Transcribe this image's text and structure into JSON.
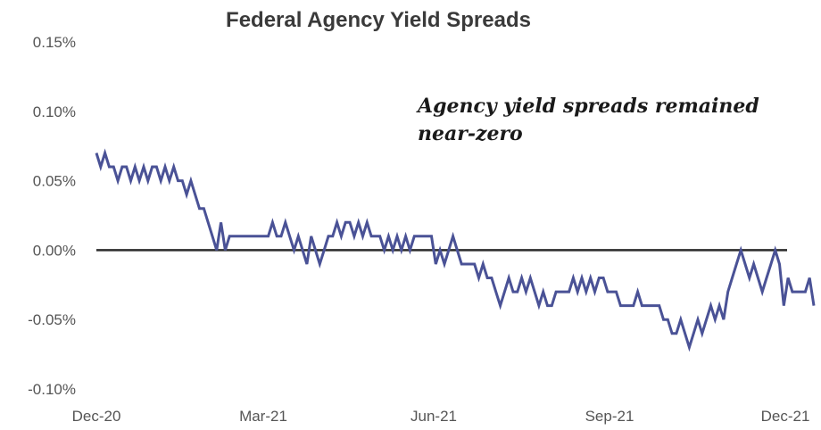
{
  "chart_data": {
    "type": "line",
    "title": "Federal Agency Yield Spreads",
    "annotation": [
      "Agency yield spreads remained",
      "near-zero"
    ],
    "xlabel": "",
    "ylabel": "",
    "x_ticks": [
      "Dec-20",
      "Mar-21",
      "Jun-21",
      "Sep-21",
      "Dec-21"
    ],
    "y_ticks": [
      "0.15%",
      "0.10%",
      "0.05%",
      "0.00%",
      "-0.05%",
      "-0.10%"
    ],
    "ylim": [
      -0.1,
      0.15
    ],
    "zero_line": true,
    "grid": false,
    "colors": {
      "series": "#4a5296",
      "zero_line": "#2b2b2b"
    },
    "series": [
      {
        "values": [
          0.07,
          0.06,
          0.07,
          0.06,
          0.06,
          0.05,
          0.06,
          0.06,
          0.05,
          0.06,
          0.05,
          0.06,
          0.05,
          0.06,
          0.06,
          0.05,
          0.06,
          0.05,
          0.06,
          0.05,
          0.05,
          0.04,
          0.05,
          0.04,
          0.03,
          0.03,
          0.02,
          0.01,
          0.0,
          0.02,
          0.0,
          0.01,
          0.01,
          0.01,
          0.01,
          0.01,
          0.01,
          0.01,
          0.01,
          0.01,
          0.01,
          0.02,
          0.01,
          0.01,
          0.02,
          0.01,
          0.0,
          0.01,
          0.0,
          -0.01,
          0.01,
          0.0,
          -0.01,
          0.0,
          0.01,
          0.01,
          0.02,
          0.01,
          0.02,
          0.02,
          0.01,
          0.02,
          0.01,
          0.02,
          0.01,
          0.01,
          0.01,
          0.0,
          0.01,
          0.0,
          0.01,
          0.0,
          0.01,
          0.0,
          0.01,
          0.01,
          0.01,
          0.01,
          0.01,
          -0.01,
          0.0,
          -0.01,
          0.0,
          0.01,
          0.0,
          -0.01,
          -0.01,
          -0.01,
          -0.01,
          -0.02,
          -0.01,
          -0.02,
          -0.02,
          -0.03,
          -0.04,
          -0.03,
          -0.02,
          -0.03,
          -0.03,
          -0.02,
          -0.03,
          -0.02,
          -0.03,
          -0.04,
          -0.03,
          -0.04,
          -0.04,
          -0.03,
          -0.03,
          -0.03,
          -0.03,
          -0.02,
          -0.03,
          -0.02,
          -0.03,
          -0.02,
          -0.03,
          -0.02,
          -0.02,
          -0.03,
          -0.03,
          -0.03,
          -0.04,
          -0.04,
          -0.04,
          -0.04,
          -0.03,
          -0.04,
          -0.04,
          -0.04,
          -0.04,
          -0.04,
          -0.05,
          -0.05,
          -0.06,
          -0.06,
          -0.05,
          -0.06,
          -0.07,
          -0.06,
          -0.05,
          -0.06,
          -0.05,
          -0.04,
          -0.05,
          -0.04,
          -0.05,
          -0.03,
          -0.02,
          -0.01,
          0.0,
          -0.01,
          -0.02,
          -0.01,
          -0.02,
          -0.03,
          -0.02,
          -0.01,
          0.0,
          -0.01,
          -0.04,
          -0.02,
          -0.03,
          -0.03,
          -0.03,
          -0.03,
          -0.02,
          -0.04
        ]
      }
    ]
  }
}
